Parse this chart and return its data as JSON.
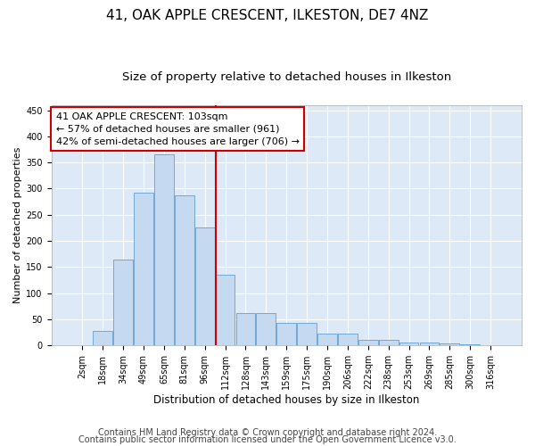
{
  "title1": "41, OAK APPLE CRESCENT, ILKESTON, DE7 4NZ",
  "title2": "Size of property relative to detached houses in Ilkeston",
  "xlabel": "Distribution of detached houses by size in Ilkeston",
  "ylabel": "Number of detached properties",
  "categories": [
    "2sqm",
    "18sqm",
    "34sqm",
    "49sqm",
    "65sqm",
    "81sqm",
    "96sqm",
    "112sqm",
    "128sqm",
    "143sqm",
    "159sqm",
    "175sqm",
    "190sqm",
    "206sqm",
    "222sqm",
    "238sqm",
    "253sqm",
    "269sqm",
    "285sqm",
    "300sqm",
    "316sqm"
  ],
  "values": [
    1,
    28,
    165,
    292,
    365,
    287,
    225,
    135,
    62,
    62,
    43,
    43,
    22,
    22,
    11,
    11,
    5,
    5,
    3,
    2,
    1
  ],
  "bar_color": "#c5d9f1",
  "bar_edge_color": "#6fa8d5",
  "annotation_line1": "41 OAK APPLE CRESCENT: 103sqm",
  "annotation_line2": "← 57% of detached houses are smaller (961)",
  "annotation_line3": "42% of semi-detached houses are larger (706) →",
  "annotation_box_color": "#ffffff",
  "annotation_box_edge": "#cc0000",
  "vline_color": "#cc0000",
  "vline_x": 6.55,
  "ylim": [
    0,
    460
  ],
  "yticks": [
    0,
    50,
    100,
    150,
    200,
    250,
    300,
    350,
    400,
    450
  ],
  "footer1": "Contains HM Land Registry data © Crown copyright and database right 2024.",
  "footer2": "Contains public sector information licensed under the Open Government Licence v3.0.",
  "bg_color": "#dde9f7",
  "fig_bg_color": "#ffffff",
  "title1_fontsize": 11,
  "title2_fontsize": 9.5,
  "annotation_fontsize": 8,
  "footer_fontsize": 7,
  "tick_fontsize": 7,
  "ylabel_fontsize": 8,
  "xlabel_fontsize": 8.5
}
